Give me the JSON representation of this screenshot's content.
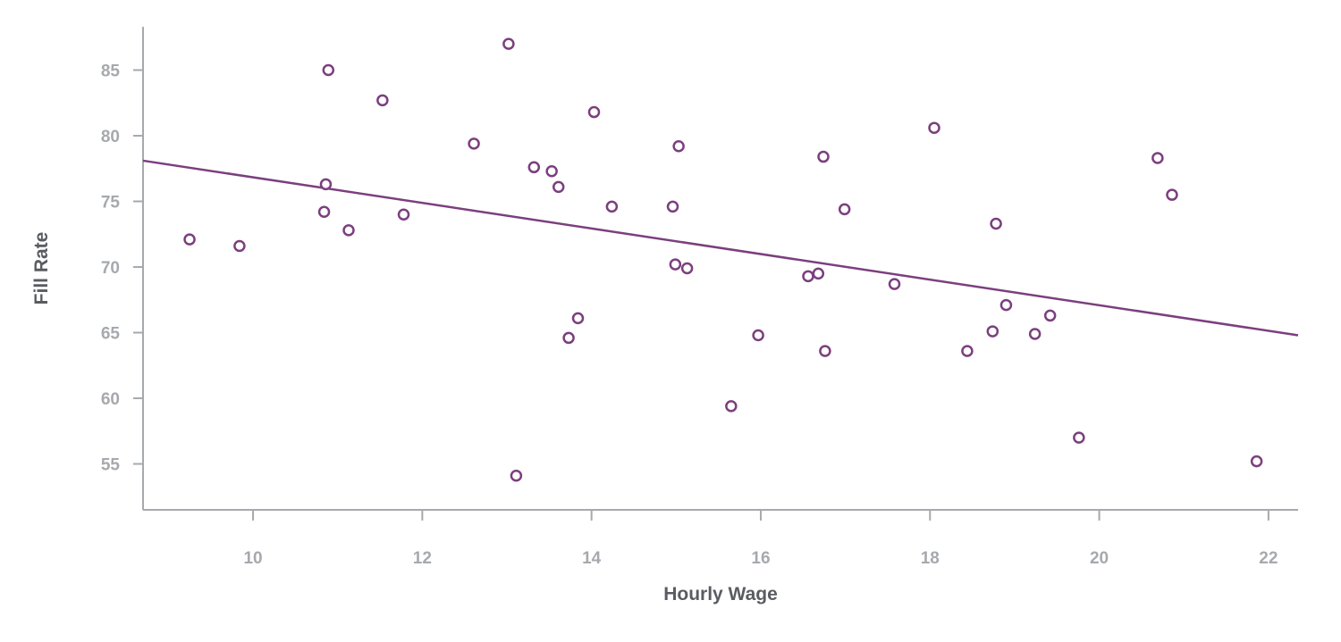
{
  "chart_data": {
    "type": "scatter",
    "title": "",
    "xlabel": "Hourly Wage",
    "ylabel": "Fill Rate",
    "xlim": [
      8.7,
      22.35
    ],
    "ylim": [
      51.5,
      88.3
    ],
    "x_ticks": [
      10,
      12,
      14,
      16,
      18,
      20,
      22
    ],
    "y_ticks": [
      55,
      60,
      65,
      70,
      75,
      80,
      85
    ],
    "grid": false,
    "legend": "none",
    "colors": {
      "points": "#7b3f7e",
      "trendline": "#7b3f7e",
      "axis": "#a6a9ad",
      "tick_text": "#a6a9ad",
      "axis_title": "#595c61"
    },
    "trendline": {
      "x": [
        8.7,
        22.35
      ],
      "y": [
        78.1,
        64.8
      ]
    },
    "points": [
      {
        "x": 9.25,
        "y": 72.1
      },
      {
        "x": 9.84,
        "y": 71.6
      },
      {
        "x": 10.84,
        "y": 74.2
      },
      {
        "x": 10.86,
        "y": 76.3
      },
      {
        "x": 10.89,
        "y": 85.0
      },
      {
        "x": 11.13,
        "y": 72.8
      },
      {
        "x": 11.53,
        "y": 82.7
      },
      {
        "x": 11.78,
        "y": 74.0
      },
      {
        "x": 12.61,
        "y": 79.4
      },
      {
        "x": 13.02,
        "y": 87.0
      },
      {
        "x": 13.11,
        "y": 54.1
      },
      {
        "x": 13.32,
        "y": 77.6
      },
      {
        "x": 13.53,
        "y": 77.3
      },
      {
        "x": 13.61,
        "y": 76.1
      },
      {
        "x": 13.73,
        "y": 64.6
      },
      {
        "x": 13.84,
        "y": 66.1
      },
      {
        "x": 14.03,
        "y": 81.8
      },
      {
        "x": 14.24,
        "y": 74.6
      },
      {
        "x": 14.96,
        "y": 74.6
      },
      {
        "x": 14.99,
        "y": 70.2
      },
      {
        "x": 15.03,
        "y": 79.2
      },
      {
        "x": 15.13,
        "y": 69.9
      },
      {
        "x": 15.65,
        "y": 59.4
      },
      {
        "x": 15.97,
        "y": 64.8
      },
      {
        "x": 16.56,
        "y": 69.3
      },
      {
        "x": 16.68,
        "y": 69.5
      },
      {
        "x": 16.74,
        "y": 78.4
      },
      {
        "x": 16.76,
        "y": 63.6
      },
      {
        "x": 16.99,
        "y": 74.4
      },
      {
        "x": 17.58,
        "y": 68.7
      },
      {
        "x": 18.05,
        "y": 80.6
      },
      {
        "x": 18.44,
        "y": 63.6
      },
      {
        "x": 18.74,
        "y": 65.1
      },
      {
        "x": 18.78,
        "y": 73.3
      },
      {
        "x": 18.9,
        "y": 67.1
      },
      {
        "x": 19.24,
        "y": 64.9
      },
      {
        "x": 19.42,
        "y": 66.3
      },
      {
        "x": 19.76,
        "y": 57.0
      },
      {
        "x": 20.69,
        "y": 78.3
      },
      {
        "x": 20.86,
        "y": 75.5
      },
      {
        "x": 21.86,
        "y": 55.2
      }
    ]
  }
}
